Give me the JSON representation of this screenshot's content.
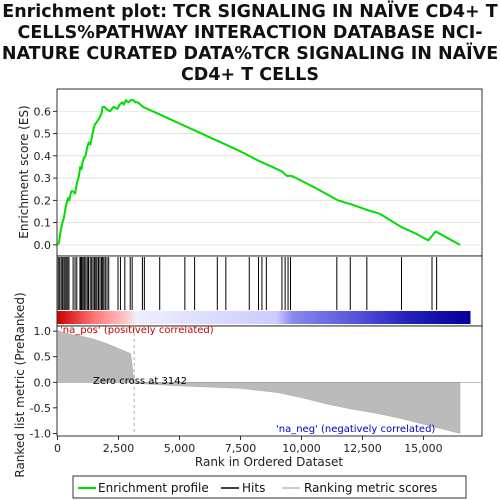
{
  "title_lines": [
    "Enrichment plot: TCR SIGNALING IN NAÏVE CD4+ T",
    "CELLS%PATHWAY INTERACTION DATABASE NCI-",
    "NATURE CURATED DATA%TCR SIGNALING IN NAÏVE",
    "CD4+ T CELLS"
  ],
  "chart_data": {
    "type": "line",
    "title": "Enrichment plot: TCR SIGNALING IN NAÏVE CD4+ T CELLS%PATHWAY INTERACTION DATABASE NCI-NATURE CURATED DATA%TCR SIGNALING IN NAÏVE CD4+ T CELLS",
    "xlabel": "Rank in Ordered Dataset",
    "es_ylabel": "Enrichment score (ES)",
    "metric_ylabel": "Ranked list metric (PreRanked)",
    "xlim": [
      0,
      17400
    ],
    "x_ticks": [
      0,
      2500,
      5000,
      7500,
      10000,
      12500,
      15000
    ],
    "x_tick_labels": [
      "0",
      "2,500",
      "5,000",
      "7,500",
      "10,000",
      "12,500",
      "15,000"
    ],
    "es_ylim": [
      -0.05,
      0.7
    ],
    "es_ticks": [
      0.0,
      0.1,
      0.2,
      0.3,
      0.4,
      0.5,
      0.6
    ],
    "es_tick_labels": [
      "0.0",
      "0.1",
      "0.2",
      "0.3",
      "0.4",
      "0.5",
      "0.6"
    ],
    "metric_ylim": [
      -1.05,
      1.1
    ],
    "metric_ticks": [
      -1.0,
      -0.5,
      0.0,
      0.5,
      1.0
    ],
    "metric_tick_labels": [
      "-1.0",
      "-0.5",
      "0.0",
      "0.5",
      "1.0"
    ],
    "series": [
      {
        "name": "Enrichment profile",
        "color": "#00dd00",
        "x": [
          0,
          60,
          110,
          160,
          200,
          260,
          320,
          380,
          430,
          480,
          560,
          640,
          720,
          800,
          880,
          930,
          980,
          1030,
          1080,
          1150,
          1220,
          1280,
          1350,
          1420,
          1480,
          1530,
          1600,
          1660,
          1720,
          1800,
          1850,
          1920,
          2000,
          2150,
          2300,
          2450,
          2550,
          2650,
          2720,
          2800,
          2900,
          3000,
          3100,
          3200,
          3300,
          3400,
          3500,
          4500,
          5500,
          6500,
          7500,
          8200,
          8800,
          9200,
          9400,
          9600,
          10500,
          11500,
          12100,
          12600,
          13200,
          14100,
          14700,
          15200,
          15500,
          16000,
          16500
        ],
        "values": [
          0.0,
          0.01,
          0.05,
          0.08,
          0.1,
          0.12,
          0.16,
          0.19,
          0.21,
          0.2,
          0.24,
          0.24,
          0.23,
          0.28,
          0.31,
          0.35,
          0.34,
          0.37,
          0.39,
          0.4,
          0.44,
          0.46,
          0.45,
          0.49,
          0.52,
          0.54,
          0.55,
          0.56,
          0.57,
          0.59,
          0.62,
          0.62,
          0.61,
          0.6,
          0.62,
          0.61,
          0.63,
          0.64,
          0.63,
          0.65,
          0.64,
          0.65,
          0.65,
          0.64,
          0.64,
          0.63,
          0.62,
          0.57,
          0.52,
          0.47,
          0.42,
          0.38,
          0.35,
          0.33,
          0.31,
          0.31,
          0.26,
          0.2,
          0.18,
          0.16,
          0.14,
          0.08,
          0.05,
          0.02,
          0.06,
          0.03,
          0.0
        ]
      },
      {
        "name": "Hits",
        "color": "#000000",
        "positions": [
          30,
          90,
          150,
          200,
          260,
          310,
          360,
          420,
          470,
          640,
          720,
          790,
          920,
          960,
          1000,
          1050,
          1100,
          1160,
          1220,
          1270,
          1340,
          1400,
          1460,
          1520,
          1570,
          1620,
          1680,
          1740,
          1800,
          1850,
          1900,
          1960,
          2030,
          2100,
          2480,
          2580,
          2760,
          2980,
          3060,
          3480,
          3560,
          4190,
          5220,
          5620,
          6550,
          6900,
          7860,
          8240,
          8380,
          8560,
          9200,
          9330,
          9450,
          9550,
          11450,
          12000,
          12680,
          14100,
          15350,
          15540
        ]
      },
      {
        "name": "Ranking metric scores",
        "color": "#bbbbbb",
        "x": [
          0,
          200,
          500,
          1000,
          1500,
          2000,
          2500,
          3000,
          3142,
          3500,
          5000,
          7500,
          9000,
          10000,
          11000,
          12000,
          13000,
          14000,
          15000,
          15500,
          16000,
          16500
        ],
        "values": [
          1.02,
          0.98,
          0.94,
          0.9,
          0.84,
          0.76,
          0.66,
          0.56,
          0.0,
          -0.03,
          -0.07,
          -0.12,
          -0.2,
          -0.3,
          -0.42,
          -0.52,
          -0.6,
          -0.7,
          -0.82,
          -0.88,
          -0.94,
          -1.0
        ]
      }
    ],
    "annotations": [
      {
        "text": "'na_pos' (positively correlated)",
        "color": "#cc0000"
      },
      {
        "text": "Zero cross at 3142",
        "color": "#000000"
      },
      {
        "text": "'na_neg' (negatively correlated)",
        "color": "#0000cc"
      }
    ],
    "zero_cross": 3142,
    "legend": {
      "placement": "bottom",
      "entries": [
        "Enrichment profile",
        "Hits",
        "Ranking metric scores"
      ]
    }
  }
}
